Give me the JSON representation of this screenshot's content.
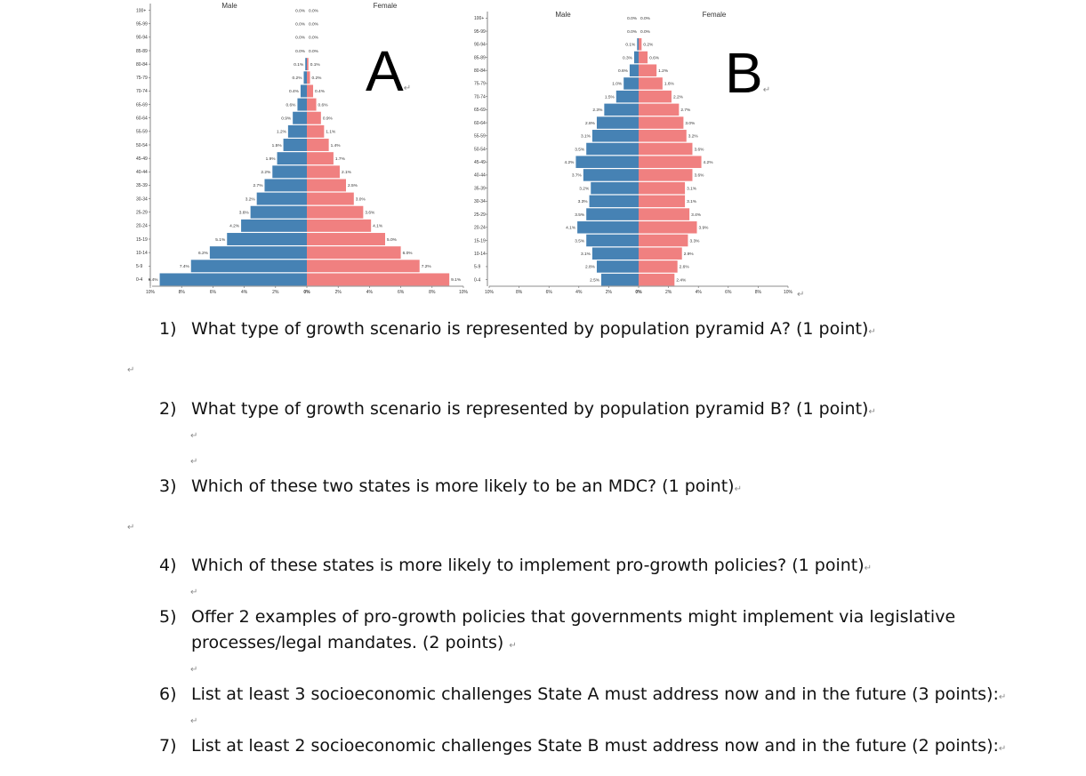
{
  "chart_data": [
    {
      "type": "bar",
      "subtype": "population-pyramid",
      "letter": "A",
      "male_label": "Male",
      "female_label": "Female",
      "categories": [
        "100+",
        "95-99",
        "90-94",
        "85-89",
        "80-84",
        "75-79",
        "70-74",
        "65-69",
        "60-64",
        "55-59",
        "50-54",
        "45-49",
        "40-44",
        "35-39",
        "30-34",
        "25-29",
        "20-24",
        "15-19",
        "10-14",
        "5-9",
        "0-4"
      ],
      "series": [
        {
          "name": "Male",
          "color": "#4682b4",
          "values": [
            0.0,
            0.0,
            0.0,
            0.0,
            0.1,
            0.2,
            0.4,
            0.6,
            0.9,
            1.2,
            1.5,
            1.9,
            2.2,
            2.7,
            3.2,
            3.6,
            4.2,
            5.1,
            6.2,
            7.4,
            9.4
          ],
          "labels": [
            "0.0%",
            "0.0%",
            "0.0%",
            "0.0%",
            "0.1%",
            "0.2%",
            "0.4%",
            "0.6%",
            "0.9%",
            "1.2%",
            "1.5%",
            "1.9%",
            "2.2%",
            "2.7%",
            "3.2%",
            "3.6%",
            "4.2%",
            "5.1%",
            "6.2%",
            "7.4%",
            "9.4%"
          ]
        },
        {
          "name": "Female",
          "color": "#f08080",
          "values": [
            0.0,
            0.0,
            0.0,
            0.0,
            0.1,
            0.2,
            0.4,
            0.6,
            0.9,
            1.1,
            1.4,
            1.7,
            2.1,
            2.5,
            3.0,
            3.6,
            4.1,
            5.0,
            6.0,
            7.2,
            9.1
          ],
          "labels": [
            "0.0%",
            "0.0%",
            "0.0%",
            "0.0%",
            "0.1%",
            "0.2%",
            "0.4%",
            "0.6%",
            "0.9%",
            "1.1%",
            "1.4%",
            "1.7%",
            "2.1%",
            "2.5%",
            "3.0%",
            "3.6%",
            "4.1%",
            "5.0%",
            "6.0%",
            "7.2%",
            "9.1%"
          ]
        }
      ],
      "xlim": [
        -10,
        10
      ],
      "xticks": [
        "10%",
        "8%",
        "6%",
        "4%",
        "2%",
        "0%",
        "2%",
        "4%",
        "6%",
        "8%",
        "10%"
      ]
    },
    {
      "type": "bar",
      "subtype": "population-pyramid",
      "letter": "B",
      "male_label": "Male",
      "female_label": "Female",
      "categories": [
        "100+",
        "95-99",
        "90-94",
        "85-89",
        "80-84",
        "75-79",
        "70-74",
        "65-69",
        "60-64",
        "55-59",
        "50-54",
        "45-49",
        "40-44",
        "35-39",
        "30-34",
        "25-29",
        "20-24",
        "15-19",
        "10-14",
        "5-9",
        "0-4"
      ],
      "series": [
        {
          "name": "Male",
          "color": "#4682b4",
          "values": [
            0.0,
            0.0,
            0.1,
            0.3,
            0.6,
            1.0,
            1.5,
            2.3,
            2.8,
            3.1,
            3.5,
            4.2,
            3.7,
            3.2,
            3.3,
            3.5,
            4.1,
            3.5,
            3.1,
            2.8,
            2.5
          ],
          "labels": [
            "0.0%",
            "0.0%",
            "0.1%",
            "0.3%",
            "0.6%",
            "1.0%",
            "1.5%",
            "2.3%",
            "2.8%",
            "3.1%",
            "3.5%",
            "4.2%",
            "3.7%",
            "3.2%",
            "3.3%",
            "3.5%",
            "4.1%",
            "3.5%",
            "3.1%",
            "2.8%",
            "2.5%"
          ]
        },
        {
          "name": "Female",
          "color": "#f08080",
          "values": [
            0.0,
            0.0,
            0.2,
            0.6,
            1.2,
            1.6,
            2.2,
            2.7,
            3.0,
            3.2,
            3.6,
            4.2,
            3.6,
            3.1,
            3.1,
            3.4,
            3.9,
            3.3,
            2.9,
            2.6,
            2.4
          ],
          "labels": [
            "0.0%",
            "0.0%",
            "0.2%",
            "0.6%",
            "1.2%",
            "1.6%",
            "2.2%",
            "2.7%",
            "3.0%",
            "3.2%",
            "3.6%",
            "4.2%",
            "3.6%",
            "3.1%",
            "3.1%",
            "3.4%",
            "3.9%",
            "3.3%",
            "2.9%",
            "2.6%",
            "2.4%"
          ]
        }
      ],
      "xlim": [
        -10,
        10
      ],
      "xticks": [
        "10%",
        "8%",
        "6%",
        "4%",
        "2%",
        "0%",
        "2%",
        "4%",
        "6%",
        "8%",
        "10%"
      ]
    }
  ],
  "paragraph_mark": "↵",
  "questions": [
    {
      "num": "1)",
      "text": "What type of growth scenario is represented by population pyramid A? (1 point)"
    },
    {
      "num": "2)",
      "text": "What type of growth scenario is represented by population pyramid B? (1 point)"
    },
    {
      "num": "3)",
      "text": "Which of these two states is more likely to be an MDC? (1 point)"
    },
    {
      "num": "4)",
      "text": "Which of these states is more likely to implement pro-growth policies? (1 point)"
    },
    {
      "num": "5)",
      "text": "Offer 2 examples of pro-growth policies that governments might implement via legislative",
      "text2": "processes/legal mandates. (2 points) "
    },
    {
      "num": "6)",
      "text": "List at least 3 socioeconomic challenges State A must address now and in the future (3 points):"
    },
    {
      "num": "7)",
      "text": "List at least 2 socioeconomic challenges State B must address now and in the future (2 points):"
    }
  ]
}
